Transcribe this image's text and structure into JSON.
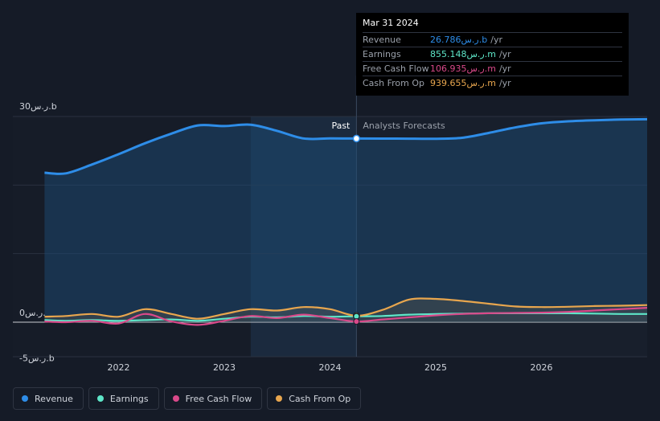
{
  "chart_data": {
    "type": "line",
    "title": "",
    "x": [
      2021.3,
      2021.5,
      2021.75,
      2022.0,
      2022.25,
      2022.5,
      2022.75,
      2023.0,
      2023.25,
      2023.5,
      2023.75,
      2024.0,
      2024.25,
      2024.5,
      2024.75,
      2025.0,
      2025.25,
      2025.5,
      2025.75,
      2026.0,
      2026.25,
      2026.5,
      2026.75,
      2027.0
    ],
    "series": [
      {
        "name": "Revenue",
        "color": "#2e8de8",
        "values": [
          21.8,
          21.7,
          23.0,
          24.5,
          26.1,
          27.5,
          28.7,
          28.6,
          28.8,
          27.9,
          26.8,
          26.8,
          26.786,
          26.78,
          26.76,
          26.75,
          26.9,
          27.6,
          28.4,
          29.0,
          29.3,
          29.45,
          29.55,
          29.6
        ]
      },
      {
        "name": "Earnings",
        "color": "#5ee6c8",
        "values": [
          0.3,
          0.2,
          0.3,
          0.2,
          0.3,
          0.4,
          0.2,
          0.5,
          0.8,
          0.7,
          0.9,
          0.8,
          0.855,
          0.9,
          1.1,
          1.2,
          1.25,
          1.3,
          1.3,
          1.3,
          1.3,
          1.25,
          1.2,
          1.2
        ]
      },
      {
        "name": "Free Cash Flow",
        "color": "#d9498a",
        "values": [
          0.1,
          0.0,
          0.2,
          -0.2,
          1.2,
          0.1,
          -0.4,
          0.2,
          0.9,
          0.6,
          1.1,
          0.6,
          0.107,
          0.4,
          0.7,
          1.0,
          1.2,
          1.3,
          1.35,
          1.4,
          1.5,
          1.7,
          1.9,
          2.1
        ]
      },
      {
        "name": "Cash From Op",
        "color": "#e8a64e",
        "values": [
          0.8,
          0.9,
          1.2,
          0.8,
          1.9,
          1.2,
          0.5,
          1.2,
          1.9,
          1.7,
          2.2,
          1.9,
          0.94,
          1.8,
          3.3,
          3.4,
          3.1,
          2.7,
          2.3,
          2.2,
          2.25,
          2.35,
          2.4,
          2.5
        ]
      }
    ],
    "ylim": [
      -5,
      30
    ],
    "xlim": [
      2021.0,
      2027.0
    ],
    "y_tick_labels": [
      {
        "value": 30,
        "label": "30ر.س.b"
      },
      {
        "value": 0,
        "label": "0ر.س."
      },
      {
        "value": -5,
        "label": "-5ر.س.b"
      }
    ],
    "x_tick_labels": [
      {
        "value": 2022,
        "label": "2022"
      },
      {
        "value": 2023,
        "label": "2023"
      },
      {
        "value": 2024,
        "label": "2024"
      },
      {
        "value": 2025,
        "label": "2025"
      },
      {
        "value": 2026,
        "label": "2026"
      }
    ],
    "past_label": "Past",
    "forecast_label": "Analysts Forecasts",
    "past_highlight_start": 2023.25,
    "divider_x": 2024.25
  },
  "tooltip": {
    "date": "Mar 31 2024",
    "rows": [
      {
        "label": "Revenue",
        "value": "26.786ر.س.b",
        "unit": "/yr",
        "color": "#2e8de8"
      },
      {
        "label": "Earnings",
        "value": "855.148ر.س.m",
        "unit": "/yr",
        "color": "#5ee6c8"
      },
      {
        "label": "Free Cash Flow",
        "value": "106.935ر.س.m",
        "unit": "/yr",
        "color": "#d9498a"
      },
      {
        "label": "Cash From Op",
        "value": "939.655ر.س.m",
        "unit": "/yr",
        "color": "#e8a64e"
      }
    ]
  },
  "legend": [
    {
      "label": "Revenue",
      "color": "#2e8de8"
    },
    {
      "label": "Earnings",
      "color": "#5ee6c8"
    },
    {
      "label": "Free Cash Flow",
      "color": "#d9498a"
    },
    {
      "label": "Cash From Op",
      "color": "#e8a64e"
    }
  ]
}
